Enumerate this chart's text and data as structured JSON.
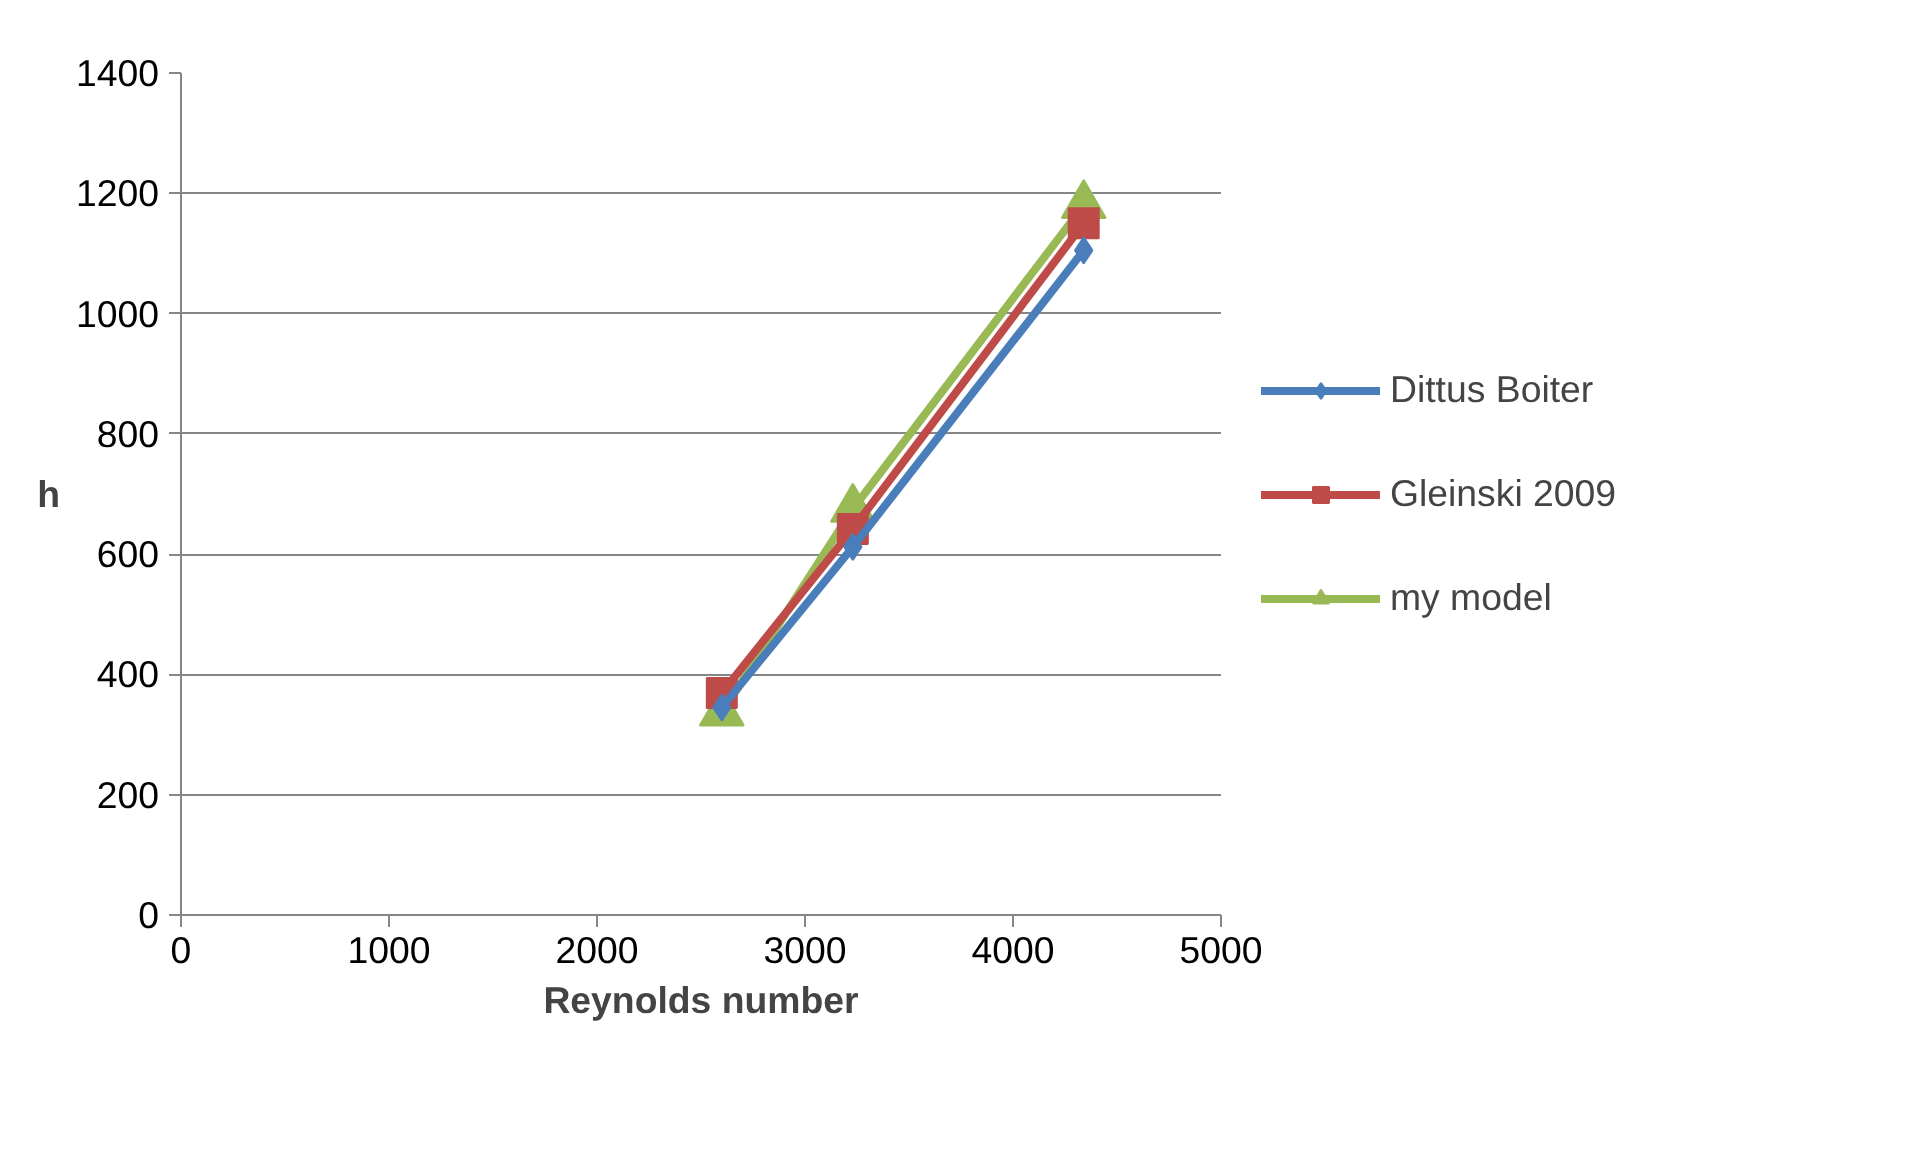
{
  "chart_data": {
    "type": "line",
    "xlabel": "Reynolds number",
    "ylabel": "h",
    "xlim": [
      0,
      5000
    ],
    "xticks": [
      0,
      1000,
      2000,
      3000,
      4000,
      5000
    ],
    "ylim": [
      0,
      1400
    ],
    "yticks": [
      0,
      200,
      400,
      600,
      800,
      1000,
      1200,
      1400
    ],
    "grid": "y",
    "legend": "right",
    "line_style": "solid",
    "series": [
      {
        "name": "Dittus Boiter",
        "color": "#4a7ebb",
        "marker": "diamond",
        "x": [
          2600,
          3230,
          4340
        ],
        "values": [
          345,
          612,
          1105
        ]
      },
      {
        "name": "Gleinski 2009",
        "color": "#be4b48",
        "marker": "square",
        "x": [
          2600,
          3230,
          4340
        ],
        "values": [
          369,
          642,
          1150
        ]
      },
      {
        "name": "my model",
        "color": "#98b954",
        "marker": "triangle",
        "x": [
          2600,
          3230,
          4340
        ],
        "values": [
          336,
          675,
          1180
        ]
      }
    ]
  }
}
